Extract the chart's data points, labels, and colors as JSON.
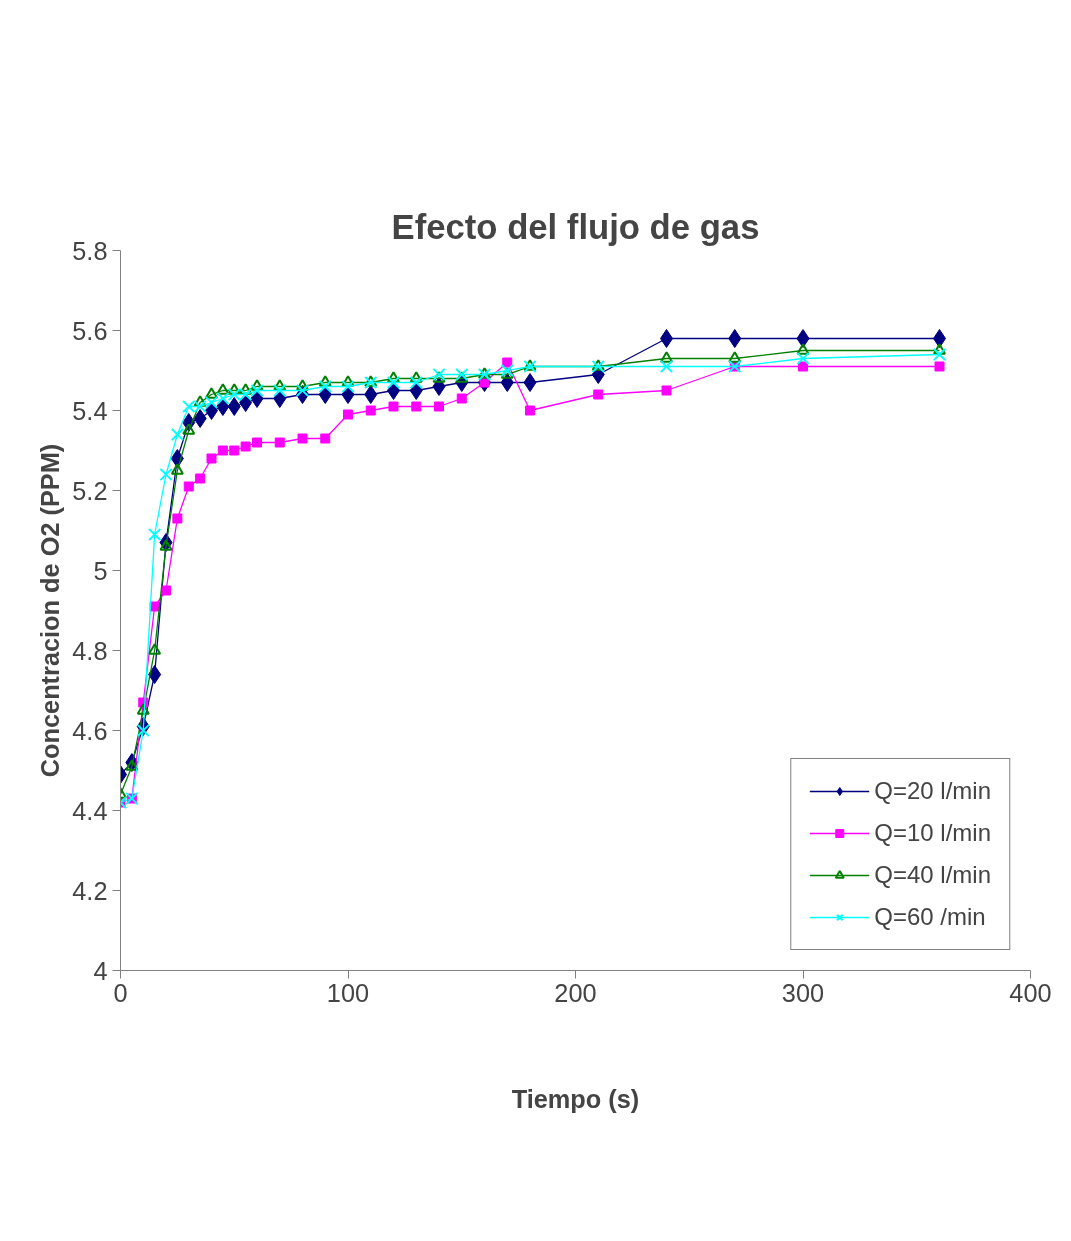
{
  "chart_data": {
    "type": "line",
    "title": "Efecto del flujo de gas",
    "xlabel": "Tiempo (s)",
    "ylabel": "Concentracion de O2 (PPM)",
    "x": [
      0,
      5,
      10,
      15,
      20,
      25,
      30,
      35,
      40,
      45,
      50,
      55,
      60,
      70,
      80,
      90,
      100,
      110,
      120,
      130,
      140,
      150,
      160,
      170,
      180,
      210,
      240,
      270,
      300,
      360
    ],
    "xlim": [
      0,
      400
    ],
    "xticks": [
      0,
      100,
      200,
      300,
      400
    ],
    "ylim": [
      4,
      5.8
    ],
    "yticks": [
      4,
      4.2,
      4.4,
      4.6,
      4.8,
      5,
      5.2,
      5.4,
      5.6,
      5.8
    ],
    "grid": false,
    "legend": "bottom right",
    "series": [
      {
        "name": "Q=20 l/min",
        "color": "#000080",
        "marker": "diamond",
        "values": [
          4.49,
          4.52,
          4.61,
          4.74,
          5.07,
          5.28,
          5.37,
          5.38,
          5.4,
          5.41,
          5.41,
          5.42,
          5.43,
          5.43,
          5.44,
          5.44,
          5.44,
          5.44,
          5.45,
          5.45,
          5.46,
          5.47,
          5.47,
          5.47,
          5.47,
          5.49,
          5.58,
          5.58,
          5.58,
          5.58
        ]
      },
      {
        "name": "Q=10 l/min",
        "color": "#ff00ff",
        "marker": "square",
        "values": [
          4.42,
          4.43,
          4.67,
          4.91,
          4.95,
          5.13,
          5.21,
          5.23,
          5.28,
          5.3,
          5.3,
          5.31,
          5.32,
          5.32,
          5.33,
          5.33,
          5.39,
          5.4,
          5.41,
          5.41,
          5.41,
          5.43,
          5.47,
          5.52,
          5.4,
          5.44,
          5.45,
          5.51,
          5.51,
          5.51
        ]
      },
      {
        "name": "Q=40 l/min",
        "color": "#008000",
        "marker": "triangle",
        "values": [
          4.44,
          4.51,
          4.65,
          4.8,
          5.06,
          5.25,
          5.35,
          5.42,
          5.44,
          5.45,
          5.45,
          5.45,
          5.46,
          5.46,
          5.46,
          5.47,
          5.47,
          5.47,
          5.48,
          5.48,
          5.48,
          5.48,
          5.49,
          5.49,
          5.51,
          5.51,
          5.53,
          5.53,
          5.55,
          5.55
        ]
      },
      {
        "name": "Q=60 /min",
        "color": "#00ffff",
        "marker": "cross",
        "values": [
          4.42,
          4.43,
          4.6,
          5.09,
          5.24,
          5.34,
          5.41,
          5.41,
          5.42,
          5.43,
          5.44,
          5.44,
          5.45,
          5.45,
          5.45,
          5.46,
          5.46,
          5.47,
          5.47,
          5.47,
          5.49,
          5.49,
          5.49,
          5.5,
          5.51,
          5.51,
          5.51,
          5.51,
          5.53,
          5.54
        ]
      }
    ]
  }
}
